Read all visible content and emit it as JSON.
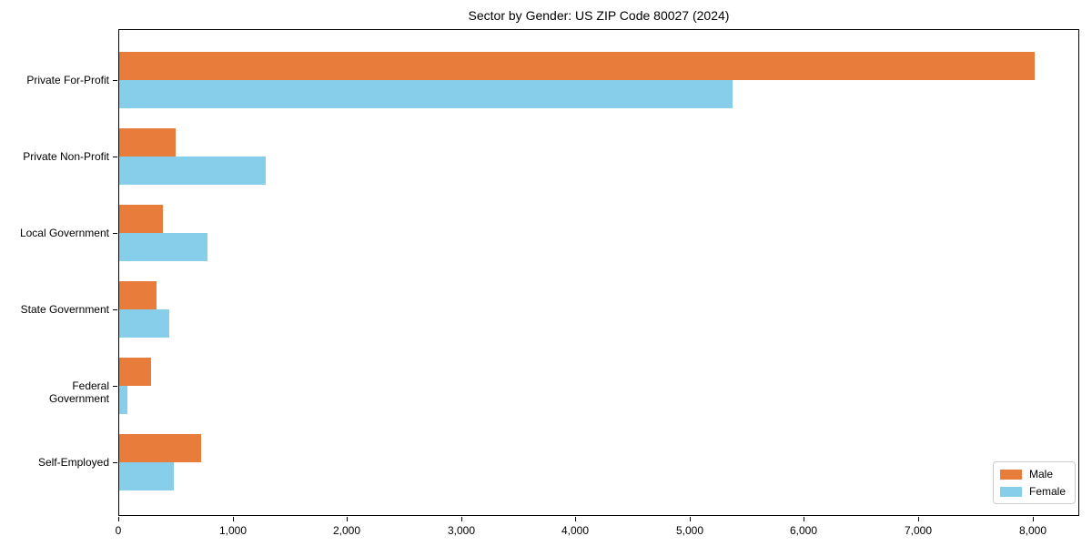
{
  "title": "Sector by Gender: US ZIP Code 80027 (2024)",
  "colors": {
    "male": "#E87D3B",
    "female": "#87CEEB",
    "axis": "#000000",
    "background": "#FFFFFF",
    "legend_border": "#CCCCCC"
  },
  "legend": {
    "position": "lower right",
    "items": [
      {
        "label": "Male",
        "color": "#E87D3B"
      },
      {
        "label": "Female",
        "color": "#87CEEB"
      }
    ]
  },
  "chart_data": {
    "type": "bar",
    "orientation": "horizontal",
    "title": "Sector by Gender: US ZIP Code 80027 (2024)",
    "categories": [
      "Private For-Profit",
      "Private Non-Profit",
      "Local Government",
      "State Government",
      "Federal Government",
      "Self-Employed"
    ],
    "series": [
      {
        "name": "Male",
        "color": "#E87D3B",
        "values": [
          8010,
          490,
          385,
          325,
          280,
          715
        ]
      },
      {
        "name": "Female",
        "color": "#87CEEB",
        "values": [
          5370,
          1285,
          770,
          440,
          70,
          480
        ]
      }
    ],
    "xlabel": "",
    "ylabel": "",
    "xlim": [
      0,
      8410
    ],
    "xticks": [
      0,
      1000,
      2000,
      3000,
      4000,
      5000,
      6000,
      7000,
      8000
    ],
    "xtick_labels": [
      "0",
      "1,000",
      "2,000",
      "3,000",
      "4,000",
      "5,000",
      "6,000",
      "7,000",
      "8,000"
    ],
    "grid": false,
    "legend_position": "lower right"
  }
}
